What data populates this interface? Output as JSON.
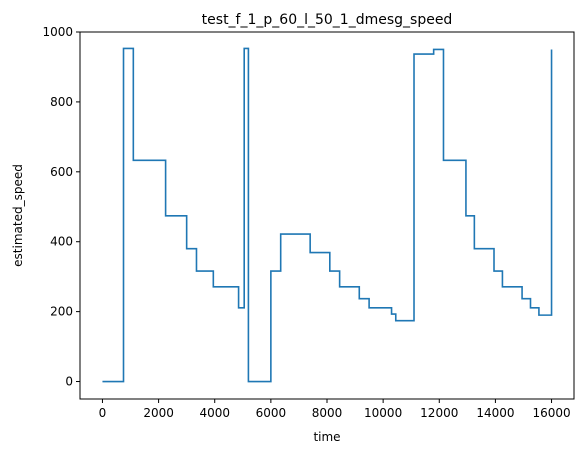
{
  "chart_data": {
    "type": "line",
    "title": "test_f_1_p_60_l_50_1_dmesg_speed",
    "xlabel": "time",
    "ylabel": "estimated_speed",
    "xlim": [
      -800,
      16800
    ],
    "ylim": [
      -50,
      1000
    ],
    "xticks": [
      0,
      2000,
      4000,
      6000,
      8000,
      10000,
      12000,
      14000,
      16000
    ],
    "yticks": [
      0,
      200,
      400,
      600,
      800,
      1000
    ],
    "grid": false,
    "line_color": "#1f77b4",
    "series": [
      {
        "step": "post",
        "x": [
          0,
          750,
          1100,
          1850,
          2250,
          3000,
          3350,
          3950,
          4850,
          5050,
          5200,
          6000,
          6350,
          7050,
          7400,
          8100,
          8450,
          9150,
          9500,
          10300,
          10450,
          11100,
          11800,
          12150,
          12950,
          13250,
          13950,
          14250,
          14950,
          15250,
          15550,
          16000
        ],
        "y": [
          0,
          953,
          633,
          633,
          474,
          380,
          316,
          271,
          211,
          953,
          0,
          316,
          422,
          422,
          369,
          316,
          271,
          237,
          211,
          193,
          174,
          937,
          950,
          633,
          474,
          380,
          316,
          271,
          237,
          211,
          190,
          950
        ]
      }
    ]
  }
}
